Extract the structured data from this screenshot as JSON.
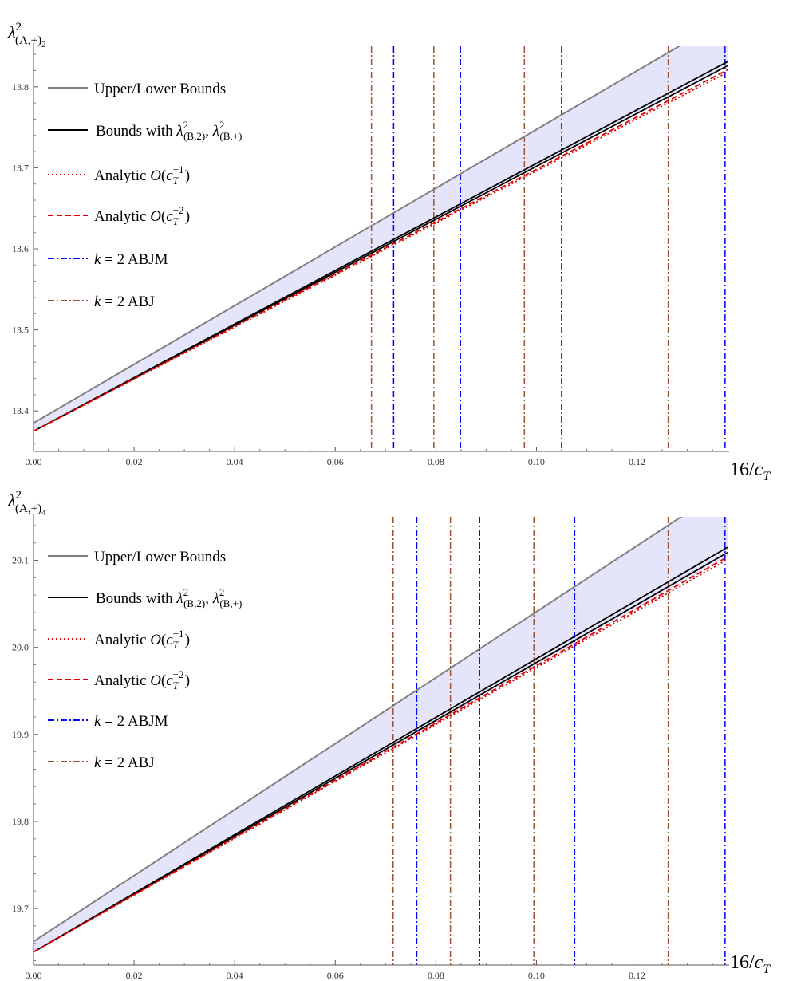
{
  "chart_data": [
    {
      "type": "line",
      "title": "",
      "ylabel_base": "λ",
      "ylabel_sup": "2",
      "ylabel_sub": "(A,+)",
      "ylabel_subsub": "2",
      "xlabel_num": "16/",
      "xlabel_var": "c",
      "xlabel_sub": "T",
      "xlim": [
        0,
        0.138
      ],
      "ylim": [
        13.35,
        13.85
      ],
      "x_ticks": [
        "0.00",
        "0.02",
        "0.04",
        "0.06",
        "0.08",
        "0.10",
        "0.12"
      ],
      "y_ticks": [
        "13.4",
        "13.5",
        "13.6",
        "13.7",
        "13.8"
      ],
      "region": {
        "lower": [
          13.375,
          13.825
        ],
        "upper": [
          13.385,
          13.885
        ],
        "color": "#e4e4fa"
      },
      "series": [
        {
          "key": "upper_lower",
          "style": "solid",
          "color": "#808080",
          "x": [
            0,
            0.138
          ],
          "y": [
            13.385,
            13.885
          ]
        },
        {
          "key": "bounds_b_upper",
          "style": "solid",
          "color": "#000000",
          "x": [
            0,
            0.138
          ],
          "y": [
            13.375,
            13.831
          ]
        },
        {
          "key": "bounds_b_lower",
          "style": "solid",
          "color": "#000000",
          "x": [
            0,
            0.138
          ],
          "y": [
            13.375,
            13.826
          ]
        },
        {
          "key": "analytic_1",
          "style": "dotted",
          "color": "#e00000",
          "x": [
            0,
            0.138
          ],
          "y": [
            13.375,
            13.818
          ]
        },
        {
          "key": "analytic_2",
          "style": "dashed",
          "color": "#e00000",
          "x": [
            0,
            0.138
          ],
          "y": [
            13.375,
            13.821
          ]
        }
      ],
      "abjm_x": [
        0.0716,
        0.0849,
        0.105,
        0.1375
      ],
      "abj_x": [
        0.0672,
        0.0796,
        0.0976,
        0.1262
      ],
      "vline_colors": {
        "abjm": "#0000ff",
        "abj": "#a0522d"
      }
    },
    {
      "type": "line",
      "title": "",
      "ylabel_base": "λ",
      "ylabel_sup": "2",
      "ylabel_sub": "(A,+)",
      "ylabel_subsub": "4",
      "xlabel_num": "16/",
      "xlabel_var": "c",
      "xlabel_sub": "T",
      "xlim": [
        0,
        0.138
      ],
      "ylim": [
        19.635,
        20.15
      ],
      "x_ticks": [
        "0.00",
        "0.02",
        "0.04",
        "0.06",
        "0.08",
        "0.10",
        "0.12"
      ],
      "y_ticks": [
        "19.7",
        "19.8",
        "19.9",
        "20.0",
        "20.1"
      ],
      "region": {
        "lower": [
          19.65,
          20.105
        ],
        "upper": [
          19.662,
          20.185
        ],
        "color": "#e4e4fa"
      },
      "series": [
        {
          "key": "upper_lower",
          "style": "solid",
          "color": "#808080",
          "x": [
            0,
            0.138
          ],
          "y": [
            19.662,
            20.185
          ]
        },
        {
          "key": "bounds_b_upper",
          "style": "solid",
          "color": "#000000",
          "x": [
            0,
            0.138
          ],
          "y": [
            19.65,
            20.115
          ]
        },
        {
          "key": "bounds_b_lower",
          "style": "solid",
          "color": "#000000",
          "x": [
            0,
            0.138
          ],
          "y": [
            19.65,
            20.109
          ]
        },
        {
          "key": "analytic_1",
          "style": "dotted",
          "color": "#e00000",
          "x": [
            0,
            0.138
          ],
          "y": [
            19.65,
            20.101
          ]
        },
        {
          "key": "analytic_2",
          "style": "dashed",
          "color": "#e00000",
          "x": [
            0,
            0.138
          ],
          "y": [
            19.65,
            20.104
          ]
        }
      ],
      "abjm_x": [
        0.0762,
        0.0887,
        0.1076,
        0.1375
      ],
      "abj_x": [
        0.0715,
        0.0829,
        0.0995,
        0.1262
      ],
      "vline_colors": {
        "abjm": "#0000ff",
        "abj": "#a0522d"
      }
    }
  ],
  "legend": [
    {
      "key": "upper_lower",
      "text": "Upper/Lower Bounds",
      "style": "solid",
      "color": "#808080"
    },
    {
      "key": "bounds_b",
      "text_main": "Bounds with",
      "lam": "λ",
      "sup": "2",
      "sub1": "(B,2)",
      "sep": ",",
      "sub2": "(B,+)",
      "style": "solid",
      "color": "#000000"
    },
    {
      "key": "analytic_1",
      "text_main": "Analytic",
      "O": "O",
      "c": "c",
      "sup": "−1",
      "sub": "T",
      "style": "dotted",
      "color": "#e00000"
    },
    {
      "key": "analytic_2",
      "text_main": "Analytic",
      "O": "O",
      "c": "c",
      "sup": "−2",
      "sub": "T",
      "style": "dashed",
      "color": "#e00000"
    },
    {
      "key": "abjm",
      "k": "k",
      "text_main": "= 2 ABJM",
      "style": "dashdot",
      "color": "#0000ff"
    },
    {
      "key": "abj",
      "k": "k",
      "text_main": "= 2 ABJ",
      "style": "dashdot",
      "color": "#a0522d"
    }
  ]
}
